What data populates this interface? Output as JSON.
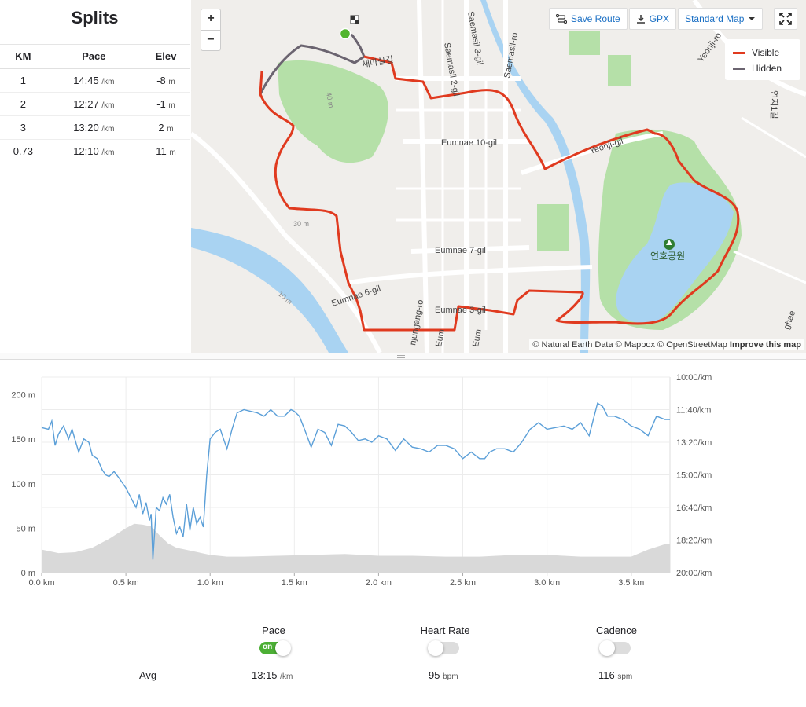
{
  "splits": {
    "title": "Splits",
    "headers": [
      "KM",
      "Pace",
      "Elev"
    ],
    "rows": [
      {
        "km": "1",
        "pace": "14:45",
        "pace_unit": "/km",
        "elev": "-8",
        "elev_unit": "m"
      },
      {
        "km": "2",
        "pace": "12:27",
        "pace_unit": "/km",
        "elev": "-1",
        "elev_unit": "m"
      },
      {
        "km": "3",
        "pace": "13:20",
        "pace_unit": "/km",
        "elev": "2",
        "elev_unit": "m"
      },
      {
        "km": "0.73",
        "pace": "12:10",
        "pace_unit": "/km",
        "elev": "11",
        "elev_unit": "m"
      }
    ]
  },
  "map": {
    "zoom_in": "+",
    "zoom_out": "−",
    "save_route": "Save Route",
    "gpx": "GPX",
    "map_style": "Standard Map",
    "legend": [
      {
        "label": "Visible",
        "color": "#e03a1f"
      },
      {
        "label": "Hidden",
        "color": "#6b6470"
      }
    ],
    "attribution": {
      "a": "© Natural Earth Data",
      "b": "© Mapbox",
      "c": "© OpenStreetMap",
      "d": "Improve this map"
    },
    "labels": [
      "Eumnae 10-gil",
      "Eumnae 7-gil",
      "Eumnae 6-gil",
      "Eumnae 3-gil",
      "Yeonji-gil",
      "Saemasil 2-gil",
      "Saemasil 3-gil",
      "Saemasil-ro",
      "Yeonji-ro",
      "연호공원",
      "30 m",
      "10 m",
      "40 m",
      "nbuk-ro",
      "njungang-ro",
      "Eum",
      "Eum",
      "새마실길",
      "연지1길",
      "ghae"
    ]
  },
  "chart_data": {
    "type": "line",
    "x_ticks": [
      "0.0 km",
      "0.5 km",
      "1.0 km",
      "1.5 km",
      "2.0 km",
      "2.5 km",
      "3.0 km",
      "3.5 km"
    ],
    "x_tick_values": [
      0,
      0.5,
      1.0,
      1.5,
      2.0,
      2.5,
      3.0,
      3.5
    ],
    "xlim": [
      0,
      3.73
    ],
    "y_left_ticks": [
      "0 m",
      "50 m",
      "100 m",
      "150 m",
      "200 m"
    ],
    "y_left_values": [
      0,
      50,
      100,
      150,
      200
    ],
    "ylim_left": [
      0,
      220
    ],
    "y_right_ticks": [
      "10:00/km",
      "11:40/km",
      "13:20/km",
      "15:00/km",
      "16:40/km",
      "18:20/km",
      "20:00/km"
    ],
    "y_right_values": [
      600,
      700,
      800,
      900,
      1000,
      1100,
      1200
    ],
    "ylim_right": [
      600,
      1200
    ],
    "grid": true,
    "colors": {
      "pace": "#5b9fd8",
      "elevation": "#d9d9d9"
    },
    "series": [
      {
        "metric": "pace",
        "x": [
          0,
          0.04,
          0.06,
          0.08,
          0.1,
          0.13,
          0.16,
          0.18,
          0.2,
          0.22,
          0.25,
          0.28,
          0.3,
          0.33,
          0.36,
          0.38,
          0.4,
          0.43,
          0.46,
          0.48,
          0.5,
          0.53,
          0.56,
          0.58,
          0.6,
          0.62,
          0.64,
          0.65,
          0.66,
          0.68,
          0.7,
          0.72,
          0.74,
          0.76,
          0.78,
          0.8,
          0.82,
          0.84,
          0.86,
          0.88,
          0.9,
          0.92,
          0.94,
          0.96,
          0.98,
          1.0,
          1.03,
          1.06,
          1.08,
          1.1,
          1.13,
          1.16,
          1.2,
          1.24,
          1.28,
          1.32,
          1.36,
          1.4,
          1.44,
          1.48,
          1.5,
          1.53,
          1.56,
          1.6,
          1.64,
          1.68,
          1.72,
          1.76,
          1.8,
          1.84,
          1.88,
          1.92,
          1.96,
          2.0,
          2.05,
          2.1,
          2.15,
          2.2,
          2.25,
          2.3,
          2.35,
          2.4,
          2.45,
          2.5,
          2.55,
          2.6,
          2.63,
          2.66,
          2.7,
          2.75,
          2.8,
          2.85,
          2.9,
          2.95,
          3.0,
          3.05,
          3.1,
          3.15,
          3.2,
          3.25,
          3.3,
          3.33,
          3.36,
          3.4,
          3.45,
          3.5,
          3.55,
          3.6,
          3.65,
          3.7,
          3.73
        ],
        "values": [
          755,
          760,
          735,
          810,
          775,
          750,
          790,
          760,
          795,
          830,
          790,
          800,
          840,
          850,
          885,
          900,
          905,
          890,
          910,
          925,
          940,
          970,
          1000,
          960,
          1020,
          985,
          1040,
          1020,
          1160,
          1000,
          1010,
          970,
          990,
          960,
          1030,
          1080,
          1060,
          1090,
          990,
          1070,
          1000,
          1050,
          1030,
          1060,
          900,
          790,
          770,
          760,
          790,
          820,
          760,
          710,
          700,
          705,
          710,
          720,
          700,
          720,
          720,
          700,
          705,
          720,
          760,
          815,
          760,
          770,
          810,
          745,
          750,
          770,
          795,
          790,
          800,
          780,
          790,
          825,
          790,
          815,
          820,
          830,
          810,
          810,
          820,
          850,
          830,
          850,
          850,
          830,
          820,
          820,
          830,
          800,
          760,
          740,
          760,
          755,
          750,
          760,
          740,
          780,
          680,
          690,
          720,
          720,
          730,
          750,
          760,
          780,
          720,
          730,
          730
        ]
      },
      {
        "metric": "elevation",
        "x": [
          0,
          0.1,
          0.2,
          0.3,
          0.4,
          0.5,
          0.55,
          0.6,
          0.65,
          0.7,
          0.75,
          0.8,
          0.9,
          1.0,
          1.1,
          1.2,
          1.4,
          1.6,
          1.8,
          2.0,
          2.2,
          2.4,
          2.6,
          2.8,
          3.0,
          3.2,
          3.4,
          3.5,
          3.6,
          3.7,
          3.73
        ],
        "values": [
          26,
          22,
          23,
          28,
          38,
          50,
          55,
          54,
          52,
          42,
          33,
          28,
          24,
          20,
          18,
          18,
          19,
          20,
          21,
          19,
          19,
          18,
          18,
          20,
          20,
          18,
          18,
          18,
          26,
          32,
          32
        ]
      }
    ]
  },
  "toggles": [
    {
      "label": "Pace",
      "on": true,
      "on_text": "on"
    },
    {
      "label": "Heart Rate",
      "on": false
    },
    {
      "label": "Cadence",
      "on": false
    }
  ],
  "avg": {
    "label": "Avg",
    "pace": "13:15",
    "pace_unit": "/km",
    "hr": "95",
    "hr_unit": "bpm",
    "cadence": "116",
    "cadence_unit": "spm"
  }
}
